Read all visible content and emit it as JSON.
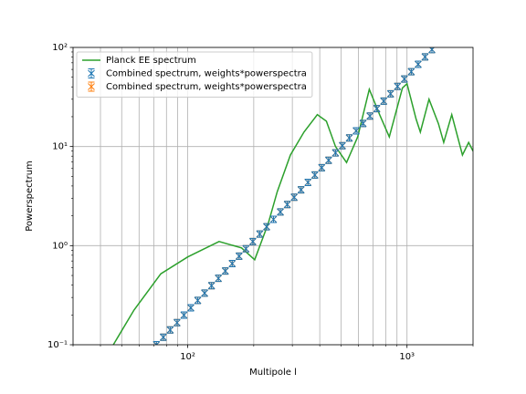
{
  "chart_data": {
    "type": "line",
    "xlabel": "Multipole l",
    "ylabel": "Powerspectrum",
    "xscale": "log",
    "yscale": "log",
    "xlim": [
      30,
      2000
    ],
    "ylim": [
      0.1,
      100
    ],
    "xticks": [
      {
        "value": 100,
        "label": "10²"
      },
      {
        "value": 1000,
        "label": "10³"
      }
    ],
    "xminorticks": [
      30,
      40,
      50,
      60,
      70,
      80,
      90,
      200,
      300,
      400,
      500,
      600,
      700,
      800,
      900,
      2000
    ],
    "yticks": [
      {
        "value": 0.1,
        "label": "10⁻¹"
      },
      {
        "value": 1,
        "label": "10⁰"
      },
      {
        "value": 10,
        "label": "10¹"
      },
      {
        "value": 100,
        "label": "10²"
      }
    ],
    "yminorticks": [
      0.2,
      0.3,
      0.4,
      0.5,
      0.6,
      0.7,
      0.8,
      0.9,
      2,
      3,
      4,
      5,
      6,
      7,
      8,
      9,
      20,
      30,
      40,
      50,
      60,
      70,
      80,
      90
    ],
    "grid": true,
    "legend": "upper left",
    "series": [
      {
        "name": "Planck EE spectrum",
        "color": "#2ca02c",
        "style": "line",
        "x": [
          45.8,
          56.9,
          75.4,
          100,
          139,
          176,
          202,
          233,
          256,
          294,
          339,
          390,
          429,
          472,
          530,
          596,
          673,
          750,
          830,
          953,
          1000,
          1100,
          1150,
          1260,
          1390,
          1470,
          1600,
          1790,
          1910,
          2000
        ],
        "values": [
          0.1,
          0.224,
          0.52,
          0.77,
          1.1,
          0.95,
          0.72,
          1.68,
          3.5,
          8.2,
          14,
          21,
          18,
          10,
          6.9,
          12.5,
          37.8,
          21,
          12.5,
          39,
          43,
          19,
          14,
          30,
          17,
          11,
          21,
          8.2,
          11,
          9
        ]
      },
      {
        "name": "Combined spectrum, weights*powerspectra",
        "color": "#1f77b4",
        "style": "errorbar",
        "x": [
          72,
          77.4,
          83.2,
          89.4,
          96.1,
          103.3,
          111.1,
          119.4,
          128.4,
          138.0,
          148.4,
          159.5,
          171.5,
          184.3,
          198.1,
          213.0,
          229.0,
          246.1,
          264.6,
          284.4,
          305.8,
          328.7,
          353.4,
          379.9,
          408.4,
          439.0,
          471.9,
          507.3,
          545.4,
          586.3,
          630.3,
          677.5,
          728.4,
          783.0,
          841.7,
          904.8,
          972.7,
          1045.7,
          1124.1,
          1208.4,
          1299.0
        ],
        "values": [
          0.1,
          0.119,
          0.141,
          0.167,
          0.199,
          0.236,
          0.28,
          0.332,
          0.394,
          0.468,
          0.555,
          0.659,
          0.783,
          0.929,
          1.1,
          1.31,
          1.55,
          1.84,
          2.19,
          2.6,
          3.08,
          3.66,
          4.35,
          5.16,
          6.12,
          7.27,
          8.63,
          10.2,
          12.2,
          14.4,
          17.1,
          20.3,
          24.1,
          28.7,
          34.0,
          40.4,
          48.0,
          56.9,
          67.6,
          80.2,
          95.2
        ]
      },
      {
        "name": "Combined spectrum, weights*powerspectra",
        "color": "#ff7f0e",
        "style": "errorbar",
        "x": [
          72,
          77.4,
          83.2,
          89.4,
          96.1,
          103.3,
          111.1,
          119.4,
          128.4,
          138.0,
          148.4,
          159.5,
          171.5,
          184.3,
          198.1,
          213.0,
          229.0,
          246.1,
          264.6,
          284.4,
          305.8,
          328.7,
          353.4,
          379.9,
          408.4,
          439.0,
          471.9,
          507.3,
          545.4,
          586.3,
          630.3,
          677.5,
          728.4,
          783.0,
          841.7,
          904.8,
          972.7,
          1045.7,
          1124.1,
          1208.4,
          1299.0
        ],
        "values": [
          0.1,
          0.119,
          0.141,
          0.167,
          0.199,
          0.236,
          0.28,
          0.332,
          0.394,
          0.468,
          0.555,
          0.659,
          0.783,
          0.929,
          1.1,
          1.31,
          1.55,
          1.84,
          2.19,
          2.6,
          3.08,
          3.66,
          4.35,
          5.16,
          6.12,
          7.27,
          8.63,
          10.2,
          12.2,
          14.4,
          17.1,
          20.3,
          24.1,
          28.7,
          34.0,
          40.4,
          48.0,
          56.9,
          67.6,
          80.2,
          95.2
        ]
      }
    ]
  }
}
